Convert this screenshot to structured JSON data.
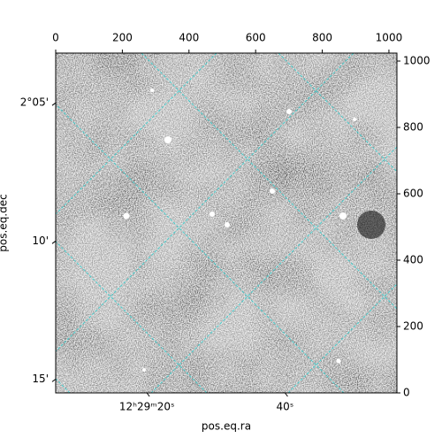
{
  "chart_data": {
    "type": "image",
    "xlabel": "pos.eq.ra",
    "ylabel": "pos.eq.dec",
    "xlim": [
      0,
      1024
    ],
    "ylim": [
      0,
      1024
    ],
    "xticks": [
      0,
      200,
      400,
      600,
      800,
      1000
    ],
    "yticks": [
      0,
      200,
      400,
      600,
      800,
      1000
    ],
    "ra_lim": [
      6.8,
      56.2
    ],
    "ra_ticks": [
      {
        "value": 20,
        "label": "12ʰ29ᵐ20ˢ"
      },
      {
        "value": 40,
        "label": "40ˢ"
      }
    ],
    "dec_lim": [
      3.2,
      15.5
    ],
    "dec_ticks": [
      {
        "value": 5,
        "label": "2°05'"
      },
      {
        "value": 10,
        "label": "10'"
      },
      {
        "value": 15,
        "label": "15'"
      }
    ],
    "grid_color": "#2ad1d1"
  }
}
